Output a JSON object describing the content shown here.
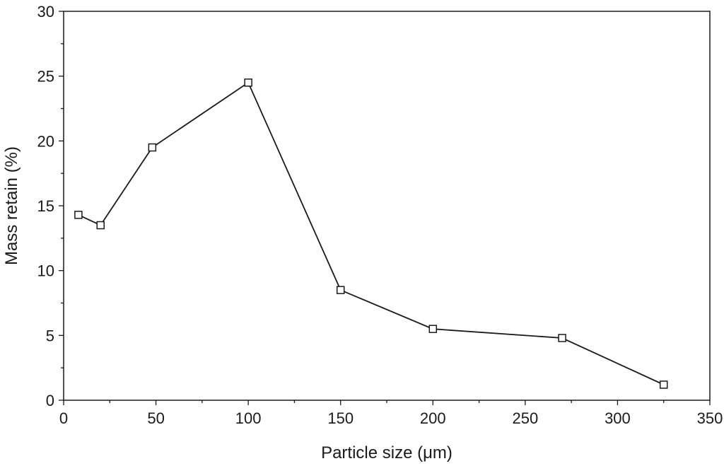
{
  "chart_data": {
    "type": "line",
    "title": "",
    "xlabel": "Particle size (μm)",
    "ylabel": "Mass retain (%)",
    "xlim": [
      0,
      350
    ],
    "ylim": [
      0,
      30
    ],
    "x_ticks": [
      0,
      50,
      100,
      150,
      200,
      250,
      300,
      350
    ],
    "y_ticks": [
      0,
      5,
      10,
      15,
      20,
      25,
      30
    ],
    "grid": false,
    "marker": "open-square",
    "series": [
      {
        "x": [
          8,
          20,
          48,
          100,
          150,
          200,
          270,
          325
        ],
        "y": [
          14.3,
          13.5,
          19.5,
          24.5,
          8.5,
          5.5,
          4.8,
          1.2
        ]
      }
    ]
  }
}
